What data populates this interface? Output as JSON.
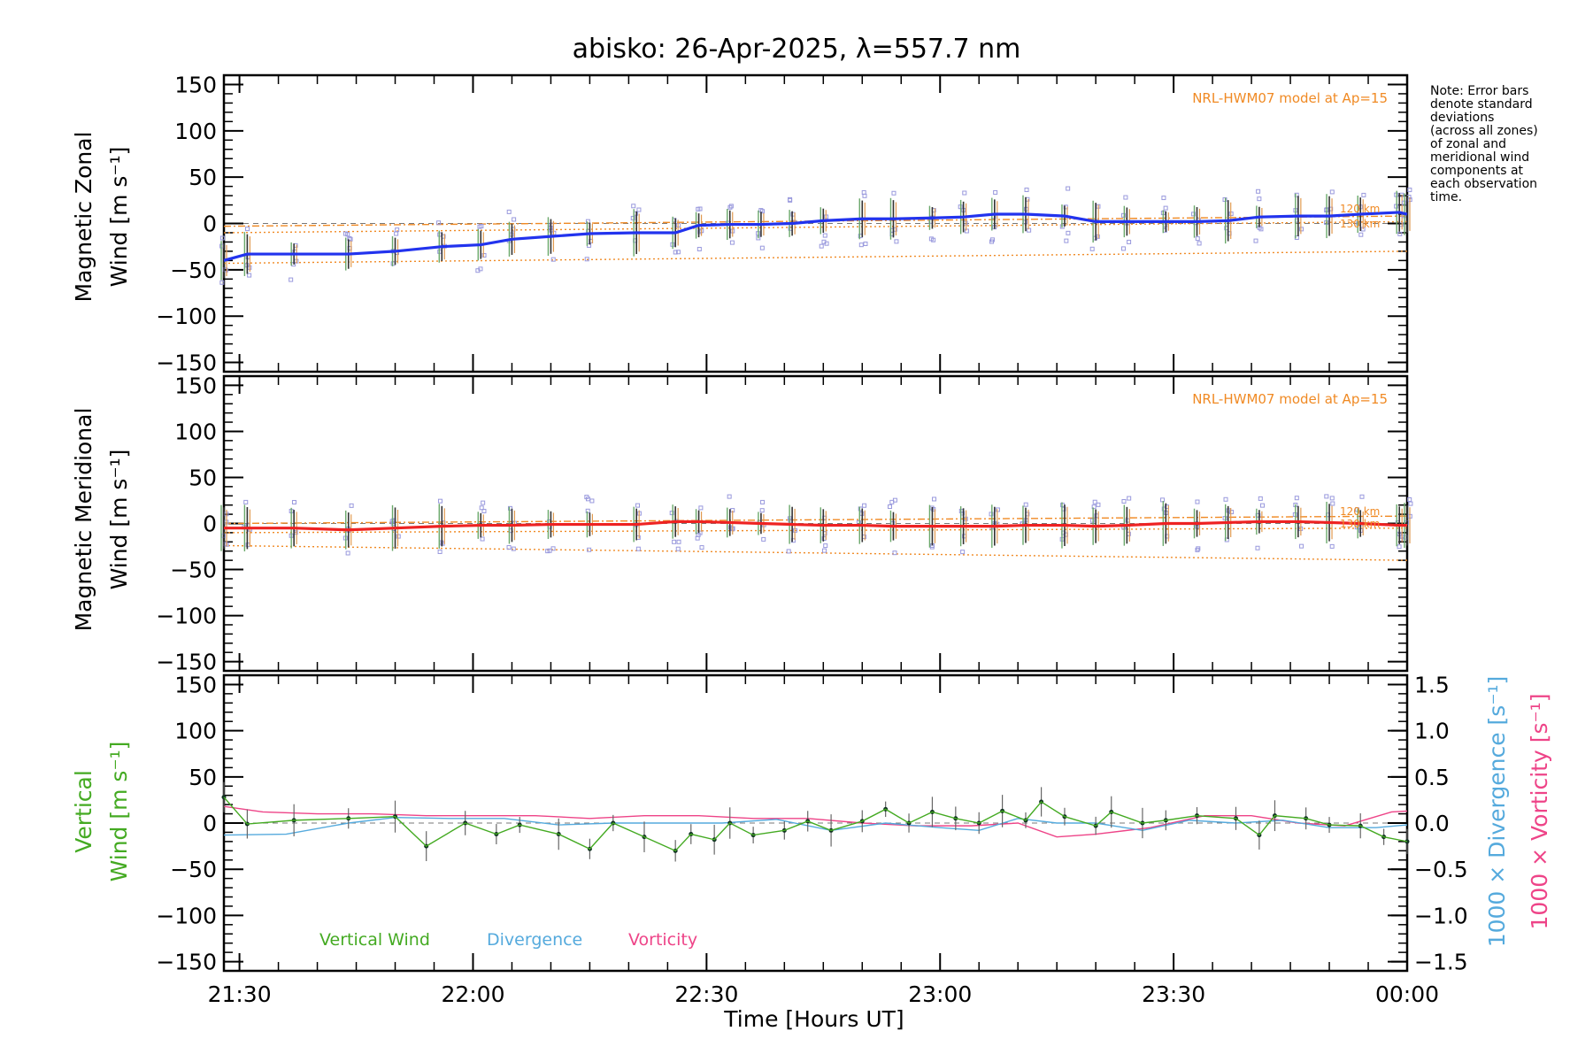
{
  "title": "abisko: 26-Apr-2025, λ=557.7 nm",
  "xlabel": "Time [Hours UT]",
  "xticks": [
    "21:30",
    "22:00",
    "22:30",
    "23:00",
    "23:30",
    "00:00"
  ],
  "note": [
    "Note: Error bars",
    "denote standard",
    "deviations",
    "(across all zones)",
    "of zonal and",
    "meridional wind",
    "components at",
    "each observation",
    "time."
  ],
  "model_label": "NRL-HWM07 model at Ap=15",
  "panels": {
    "zonal": {
      "ylabel1": "Magnetic Zonal",
      "ylabel2": "Wind [m s⁻¹]",
      "km_upper": "120 km",
      "km_lower": "130 km"
    },
    "meridional": {
      "ylabel1": "Magnetic Meridional",
      "ylabel2": "Wind [m s⁻¹]",
      "km_upper": "120 km",
      "km_lower": "130 km"
    },
    "vertical": {
      "ylabel1": "Vertical",
      "ylabel2": "Wind [m s⁻¹]",
      "right_label_div": "1000 × Divergence [s⁻¹]",
      "right_label_vort": "1000 × Vorticity [s⁻¹]"
    }
  },
  "legend": {
    "vertical": "Vertical Wind",
    "divergence": "Divergence",
    "vorticity": "Vorticity"
  },
  "colors": {
    "zonal": "#2233ee",
    "meridional": "#ee2222",
    "vertical": "#44aa22",
    "divergence": "#55aadd",
    "vorticity": "#ee4488",
    "model": "#f08a24",
    "scatter": "#9999dd"
  },
  "chart_data": [
    {
      "type": "line",
      "name": "Magnetic Zonal Wind",
      "x_range": [
        "21:28",
        "00:00"
      ],
      "ylim": [
        -160,
        160
      ],
      "yticks": [
        -150,
        -100,
        -50,
        0,
        50,
        100,
        150
      ],
      "x": [
        "21:28",
        "21:31",
        "21:37",
        "21:44",
        "21:50",
        "21:56",
        "22:01",
        "22:05",
        "22:10",
        "22:15",
        "22:21",
        "22:26",
        "22:29",
        "22:33",
        "22:37",
        "22:41",
        "22:45",
        "22:50",
        "22:54",
        "22:59",
        "23:03",
        "23:07",
        "23:11",
        "23:16",
        "23:20",
        "23:24",
        "23:29",
        "23:33",
        "23:37",
        "23:41",
        "23:46",
        "23:50",
        "23:54",
        "23:59",
        "00:00"
      ],
      "series": [
        {
          "values": [
            -40,
            -33,
            -33,
            -33,
            -30,
            -25,
            -23,
            -17,
            -14,
            -11,
            -10,
            -10,
            -2,
            -1,
            -1,
            0,
            3,
            5,
            5,
            6,
            7,
            10,
            10,
            8,
            2,
            2,
            2,
            2,
            3,
            7,
            8,
            8,
            10,
            12,
            10
          ]
        }
      ],
      "model": {
        "y_start": [
          -3,
          -10,
          -43
        ],
        "y_end": [
          8,
          2,
          -30
        ]
      }
    },
    {
      "type": "line",
      "name": "Magnetic Meridional Wind",
      "x_range": [
        "21:28",
        "00:00"
      ],
      "ylim": [
        -160,
        160
      ],
      "yticks": [
        -150,
        -100,
        -50,
        0,
        50,
        100,
        150
      ],
      "x": [
        "21:28",
        "21:31",
        "21:37",
        "21:44",
        "21:50",
        "21:56",
        "22:01",
        "22:05",
        "22:10",
        "22:15",
        "22:21",
        "22:26",
        "22:29",
        "22:33",
        "22:37",
        "22:41",
        "22:45",
        "22:50",
        "22:54",
        "22:59",
        "23:03",
        "23:07",
        "23:11",
        "23:16",
        "23:20",
        "23:24",
        "23:29",
        "23:33",
        "23:37",
        "23:41",
        "23:46",
        "23:50",
        "23:54",
        "23:59",
        "00:00"
      ],
      "series": [
        {
          "values": [
            -5,
            -5,
            -5,
            -7,
            -5,
            -3,
            -2,
            -2,
            -1,
            -1,
            -1,
            2,
            2,
            1,
            0,
            -1,
            -2,
            -2,
            -3,
            -3,
            -3,
            -3,
            -2,
            -2,
            -3,
            -2,
            0,
            0,
            1,
            2,
            2,
            1,
            0,
            -2,
            -2
          ]
        }
      ],
      "model": {
        "y_start": [
          0,
          -10,
          -24
        ],
        "y_end": [
          8,
          -5,
          -40
        ]
      }
    },
    {
      "type": "line",
      "name": "Vertical Wind / Divergence / Vorticity",
      "x_range": [
        "21:28",
        "00:00"
      ],
      "ylim": [
        -160,
        160
      ],
      "yticks": [
        -150,
        -100,
        -50,
        0,
        50,
        100,
        150
      ],
      "y2lim": [
        -1.6,
        1.6
      ],
      "y2ticks": [
        -1.5,
        -1.0,
        -0.5,
        0.0,
        0.5,
        1.0,
        1.5
      ],
      "series": [
        {
          "name": "Vertical Wind",
          "x": [
            "21:28",
            "21:31",
            "21:37",
            "21:44",
            "21:50",
            "21:54",
            "21:59",
            "22:03",
            "22:06",
            "22:11",
            "22:15",
            "22:18",
            "22:22",
            "22:26",
            "22:28",
            "22:31",
            "22:33",
            "22:36",
            "22:40",
            "22:43",
            "22:46",
            "22:50",
            "22:53",
            "22:56",
            "22:59",
            "23:02",
            "23:05",
            "23:08",
            "23:11",
            "23:13",
            "23:16",
            "23:20",
            "23:22",
            "23:26",
            "23:29",
            "23:33",
            "23:38",
            "23:41",
            "23:43",
            "23:47",
            "23:50",
            "23:54",
            "23:57",
            "00:00"
          ],
          "values": [
            28,
            -1,
            3,
            5,
            7,
            -25,
            0,
            -12,
            -2,
            -12,
            -28,
            0,
            -15,
            -30,
            -12,
            -18,
            0,
            -13,
            -8,
            2,
            -8,
            2,
            15,
            0,
            12,
            5,
            0,
            13,
            3,
            23,
            7,
            -3,
            12,
            0,
            3,
            8,
            5,
            -13,
            8,
            5,
            -2,
            -3,
            -15,
            -20
          ]
        },
        {
          "name": "Divergence",
          "x": [
            "21:28",
            "21:36",
            "21:44",
            "21:50",
            "21:57",
            "22:04",
            "22:11",
            "22:18",
            "22:25",
            "22:32",
            "22:39",
            "22:46",
            "22:53",
            "23:00",
            "23:05",
            "23:10",
            "23:15",
            "23:20",
            "23:26",
            "23:32",
            "23:38",
            "23:44",
            "23:50",
            "23:56",
            "00:00"
          ],
          "values": [
            -0.13,
            -0.12,
            0.0,
            0.06,
            0.05,
            0.05,
            -0.02,
            0.0,
            0.0,
            0.0,
            0.04,
            -0.08,
            0.0,
            -0.05,
            -0.08,
            0.05,
            0.0,
            0.0,
            -0.08,
            0.03,
            0.0,
            0.03,
            -0.05,
            -0.05,
            -0.02
          ]
        },
        {
          "name": "Vorticity",
          "x": [
            "21:28",
            "21:33",
            "21:40",
            "21:47",
            "21:54",
            "22:01",
            "22:08",
            "22:15",
            "22:22",
            "22:29",
            "22:36",
            "22:43",
            "22:50",
            "22:57",
            "23:04",
            "23:10",
            "23:15",
            "23:20",
            "23:27",
            "23:34",
            "23:40",
            "23:46",
            "23:52",
            "23:58",
            "00:00"
          ],
          "values": [
            0.18,
            0.12,
            0.1,
            0.1,
            0.08,
            0.08,
            0.08,
            0.05,
            0.08,
            0.08,
            0.05,
            0.05,
            0.0,
            -0.03,
            -0.03,
            0.0,
            -0.15,
            -0.12,
            -0.05,
            0.08,
            0.08,
            0.0,
            -0.03,
            0.12,
            0.13
          ]
        }
      ]
    }
  ]
}
